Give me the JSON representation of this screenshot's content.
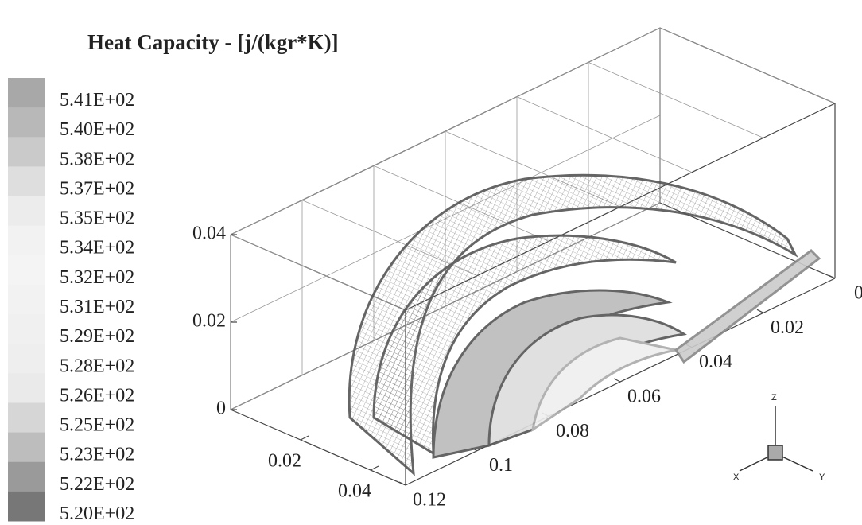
{
  "chart_data": {
    "type": "contour3d",
    "title": "Heat Capacity - [j/(kgr*K)]",
    "levels": [
      {
        "value": 541,
        "label": "5.41E+02"
      },
      {
        "value": 540,
        "label": "5.40E+02"
      },
      {
        "value": 538,
        "label": "5.38E+02"
      },
      {
        "value": 537,
        "label": "5.37E+02"
      },
      {
        "value": 535,
        "label": "5.35E+02"
      },
      {
        "value": 534,
        "label": "5.34E+02"
      },
      {
        "value": 532,
        "label": "5.32E+02"
      },
      {
        "value": 531,
        "label": "5.31E+02"
      },
      {
        "value": 529,
        "label": "5.29E+02"
      },
      {
        "value": 528,
        "label": "5.28E+02"
      },
      {
        "value": 526,
        "label": "5.26E+02"
      },
      {
        "value": 525,
        "label": "5.25E+02"
      },
      {
        "value": 523,
        "label": "5.23E+02"
      },
      {
        "value": 522,
        "label": "5.22E+02"
      },
      {
        "value": 520,
        "label": "5.20E+02"
      }
    ],
    "level_colors": [
      "#a8a8a8",
      "#b8b8b8",
      "#cacaca",
      "#dedede",
      "#ececec",
      "#f2f2f2",
      "#f4f4f4",
      "#f2f2f2",
      "#f0f0f0",
      "#eeeeee",
      "#eaeaea",
      "#d6d6d6",
      "#bdbdbd",
      "#9a9a9a",
      "#777777"
    ],
    "xlim": [
      0,
      0.05
    ],
    "ylim": [
      0,
      0.12
    ],
    "zlim": [
      0,
      0.04
    ],
    "xticks": [
      0.02,
      0.04
    ],
    "yticks": [
      0,
      0.02,
      0.04,
      0.06,
      0.08,
      0.1,
      0.12
    ],
    "zticks": [
      0,
      0.02,
      0.04
    ],
    "grid": true,
    "triad": {
      "x": "X",
      "y": "Y",
      "z": "Z"
    }
  }
}
